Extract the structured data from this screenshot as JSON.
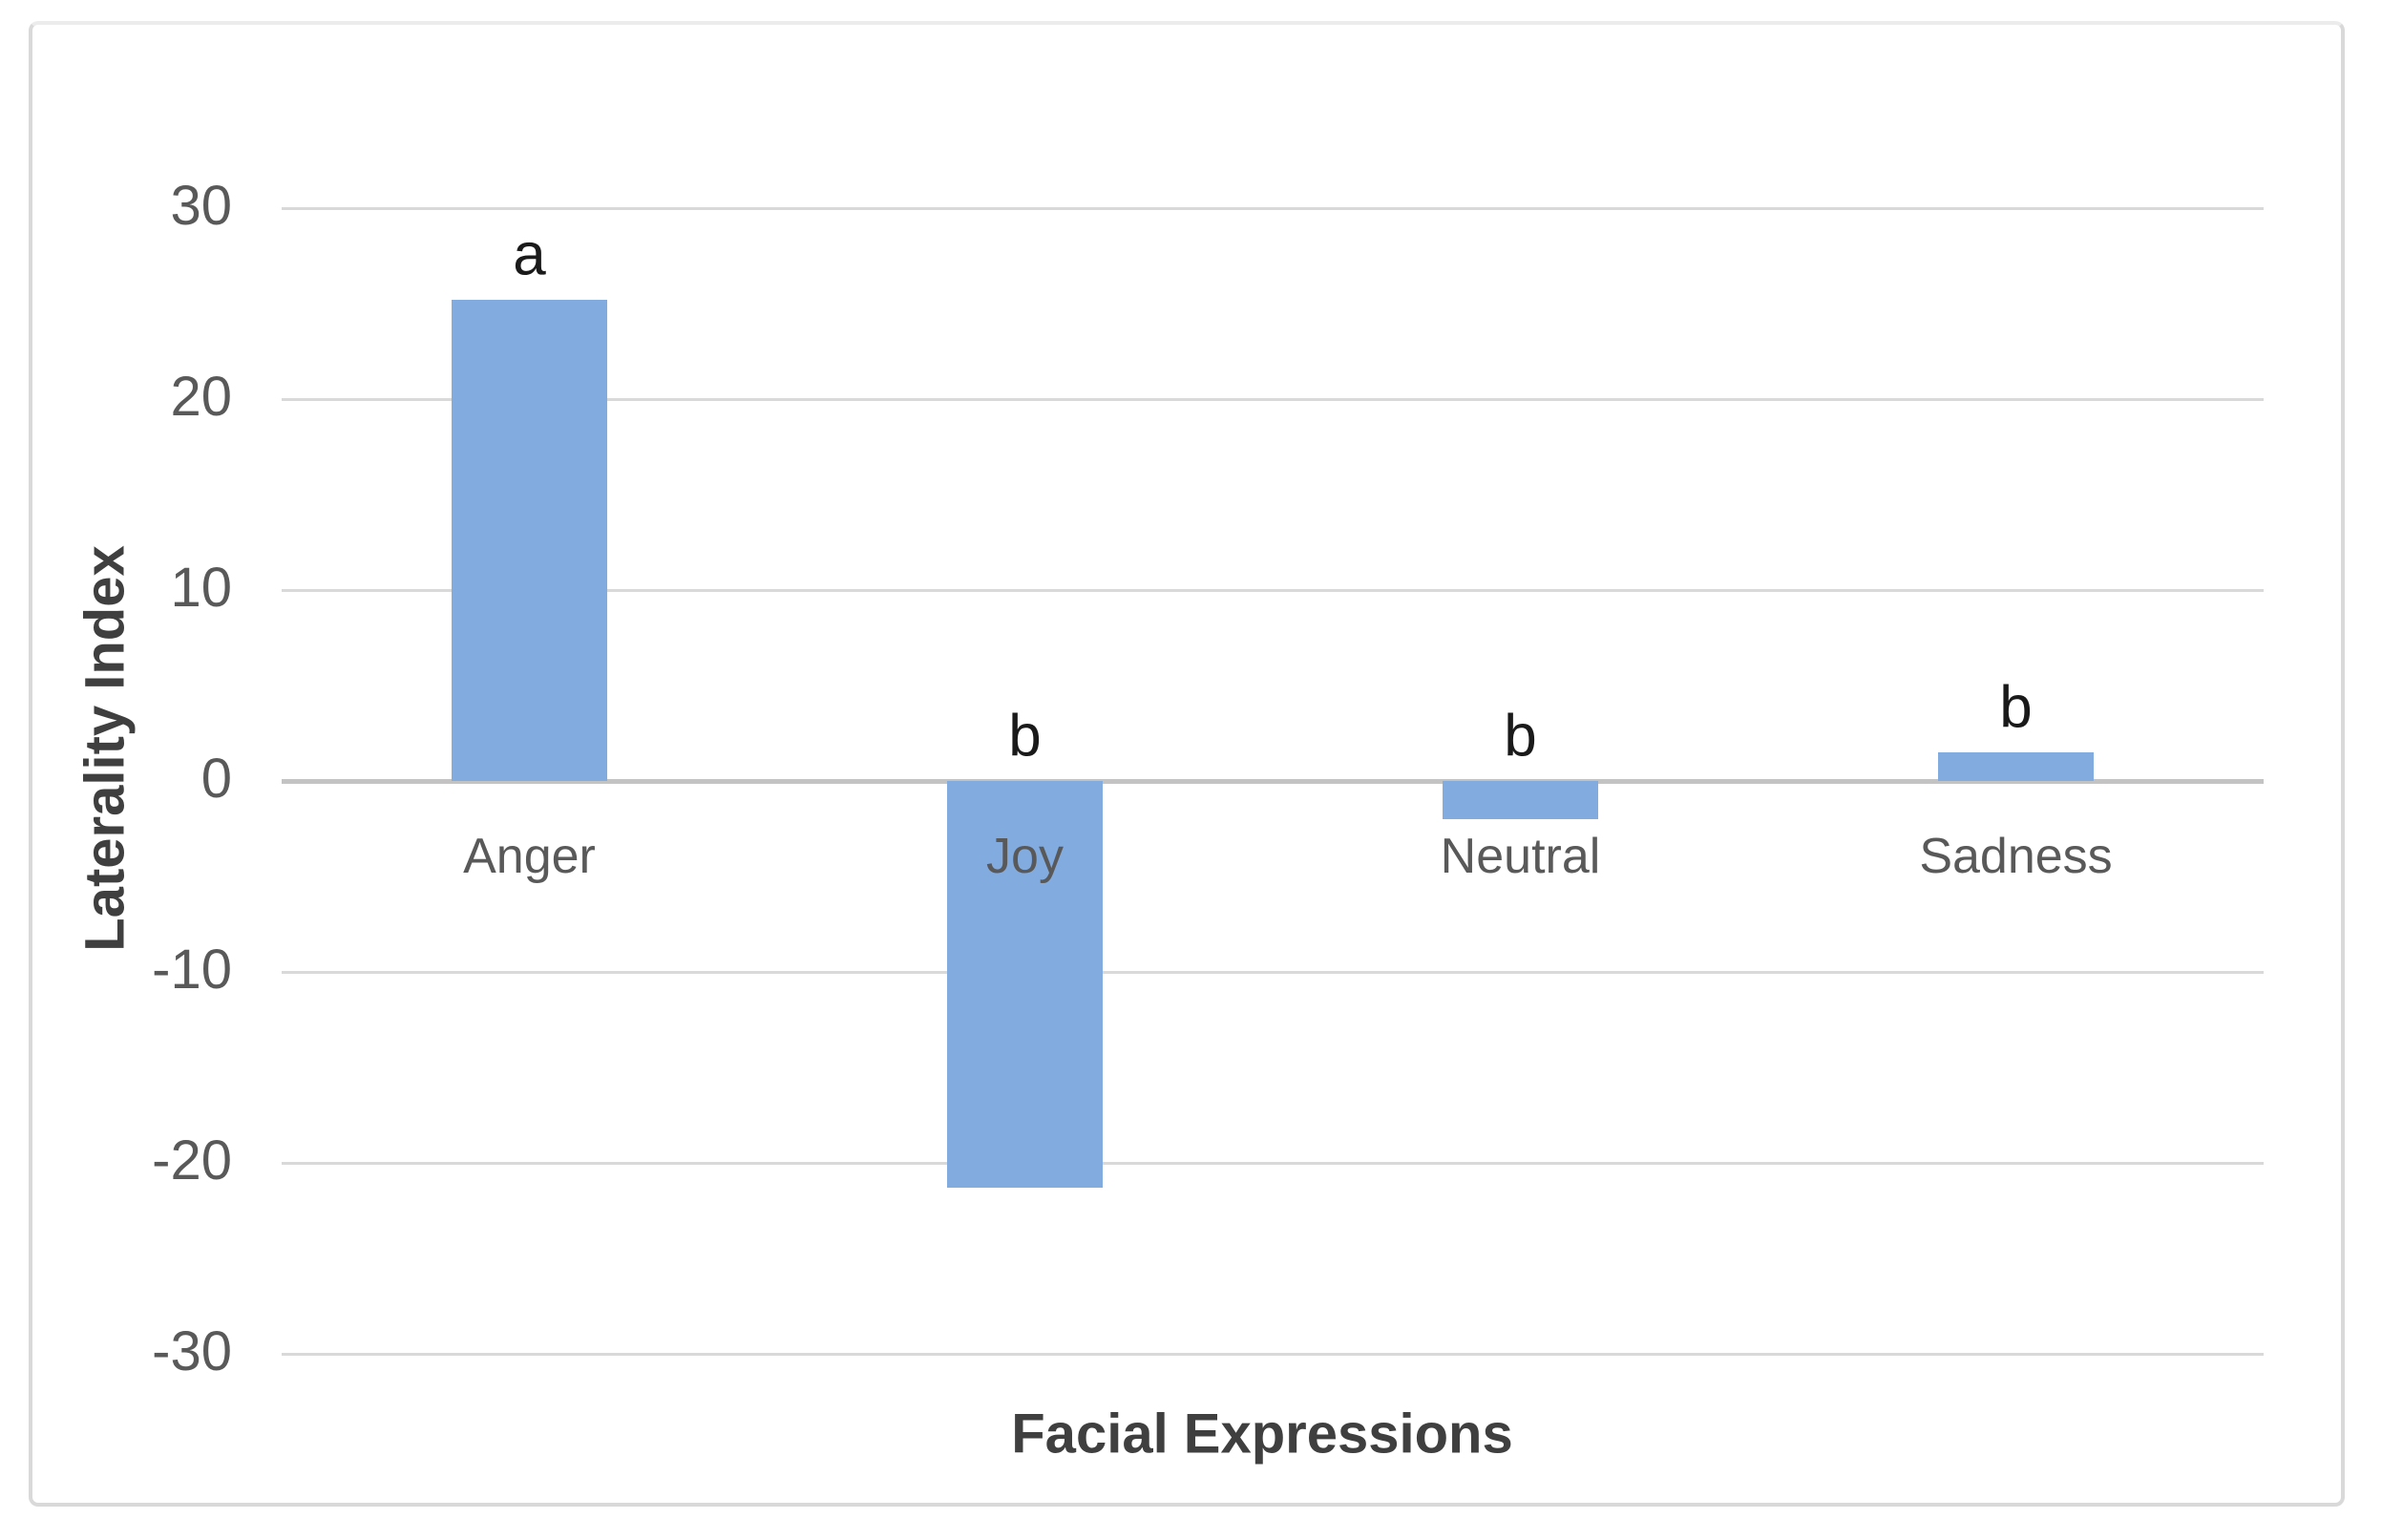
{
  "figure": {
    "background_color": "#ffffff",
    "border_color": "#d9d9d9"
  },
  "chart_data": {
    "type": "bar",
    "title": "",
    "xlabel": "Facial Expressions",
    "ylabel": "Laterality Index",
    "categories": [
      "Anger",
      "Joy",
      "Neutral",
      "Sadness"
    ],
    "values": [
      25.2,
      -21.3,
      -2.0,
      1.5
    ],
    "annotations": [
      "a",
      "b",
      "b",
      "b"
    ],
    "yticks": [
      30,
      20,
      10,
      0,
      -10,
      -20,
      -30
    ],
    "ylim": [
      -30,
      30
    ],
    "grid": true,
    "legend_position": "none",
    "bar_color": "#82abe0",
    "gridline_color": "#d9d9d9",
    "zero_line_color": "#c3c3c3",
    "tick_label_color": "#595959",
    "category_label_color": "#595959",
    "axis_title_color": "#3f3f3f",
    "annotation_color": "#1a1a1a"
  }
}
